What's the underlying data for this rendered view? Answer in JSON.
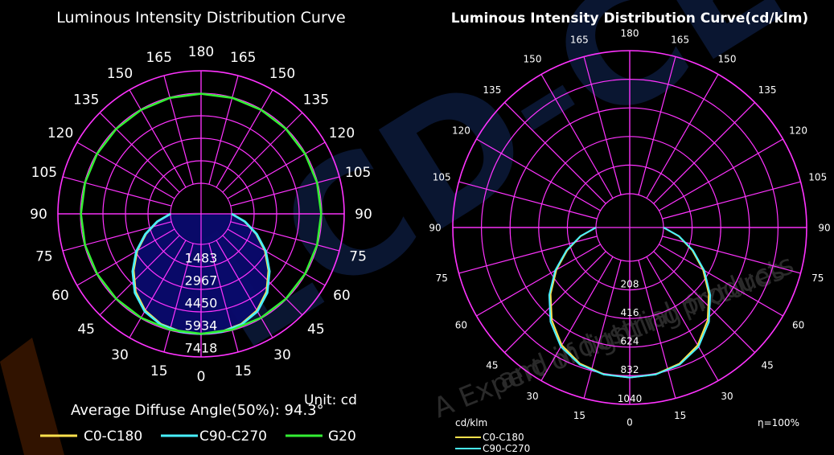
{
  "chart_data": [
    {
      "type": "polar",
      "title": "Luminous Intensity Distribution Curve",
      "unit_label": "Unit: cd",
      "footer_text": "Average Diffuse Angle(50%): 94.3°",
      "angle_labels_left": [
        "180",
        "165",
        "150",
        "135",
        "120",
        "105",
        "90",
        "75",
        "60",
        "45",
        "30",
        "15",
        "0"
      ],
      "angle_labels_right": [
        "165",
        "150",
        "135",
        "120",
        "105",
        "90",
        "75",
        "60",
        "45",
        "30",
        "15"
      ],
      "radial_tick_labels": [
        "1483",
        "2967",
        "4450",
        "5934",
        "7418"
      ],
      "rmax": 7418,
      "colors": {
        "grid": "#ff33ff",
        "fill": "#0a0a6e"
      },
      "series": [
        {
          "name": "C0-C180",
          "color": "#ffe14d",
          "points": [
            [
              0,
              5900
            ],
            [
              10,
              5870
            ],
            [
              20,
              5720
            ],
            [
              30,
              5350
            ],
            [
              40,
              4700
            ],
            [
              50,
              3800
            ],
            [
              60,
              2850
            ],
            [
              70,
              1850
            ],
            [
              80,
              900
            ],
            [
              90,
              0
            ]
          ]
        },
        {
          "name": "C90-C270",
          "color": "#48f0ff",
          "points": [
            [
              0,
              5900
            ],
            [
              10,
              5880
            ],
            [
              20,
              5760
            ],
            [
              30,
              5420
            ],
            [
              40,
              4780
            ],
            [
              50,
              3880
            ],
            [
              60,
              2920
            ],
            [
              70,
              1900
            ],
            [
              80,
              930
            ],
            [
              90,
              0
            ]
          ]
        },
        {
          "name": "G20",
          "color": "#33ee33",
          "points": [
            [
              0,
              5890
            ],
            [
              15,
              5890
            ],
            [
              30,
              5900
            ],
            [
              45,
              5900
            ],
            [
              60,
              5900
            ],
            [
              75,
              5900
            ],
            [
              90,
              5900
            ],
            [
              105,
              5900
            ],
            [
              120,
              5900
            ],
            [
              135,
              5900
            ],
            [
              150,
              5900
            ],
            [
              165,
              5900
            ],
            [
              180,
              5900
            ]
          ]
        }
      ]
    },
    {
      "type": "polar",
      "title": "Luminous Intensity Distribution Curve(cd/klm)",
      "unit_label": "cd/klm",
      "efficiency_label": "η=100%",
      "angle_labels_left": [
        "180",
        "165",
        "150",
        "135",
        "120",
        "105",
        "90",
        "75",
        "60",
        "45",
        "30",
        "15",
        "0"
      ],
      "angle_labels_right": [
        "165",
        "150",
        "135",
        "120",
        "105",
        "90",
        "75",
        "60",
        "45",
        "30",
        "15"
      ],
      "radial_tick_labels": [
        "208",
        "416",
        "624",
        "832",
        "1040"
      ],
      "rmax": 1040,
      "colors": {
        "grid": "#ff33ff"
      },
      "series": [
        {
          "name": "C0-C180",
          "color": "#ffe14d",
          "points": [
            [
              0,
              845
            ],
            [
              10,
              838
            ],
            [
              20,
              808
            ],
            [
              30,
              742
            ],
            [
              40,
              635
            ],
            [
              50,
              505
            ],
            [
              60,
              370
            ],
            [
              70,
              238
            ],
            [
              80,
              116
            ],
            [
              90,
              0
            ]
          ]
        },
        {
          "name": "C90-C270",
          "color": "#48f0ff",
          "points": [
            [
              0,
              845
            ],
            [
              10,
              840
            ],
            [
              20,
              815
            ],
            [
              30,
              755
            ],
            [
              40,
              650
            ],
            [
              50,
              518
            ],
            [
              60,
              380
            ],
            [
              70,
              244
            ],
            [
              80,
              119
            ],
            [
              90,
              0
            ]
          ]
        }
      ]
    }
  ],
  "watermark": {
    "brand": "LCD-CE",
    "slogan_line1": "A Expert of lighting fixtures",
    "slogan_line2": "and industrial products"
  }
}
